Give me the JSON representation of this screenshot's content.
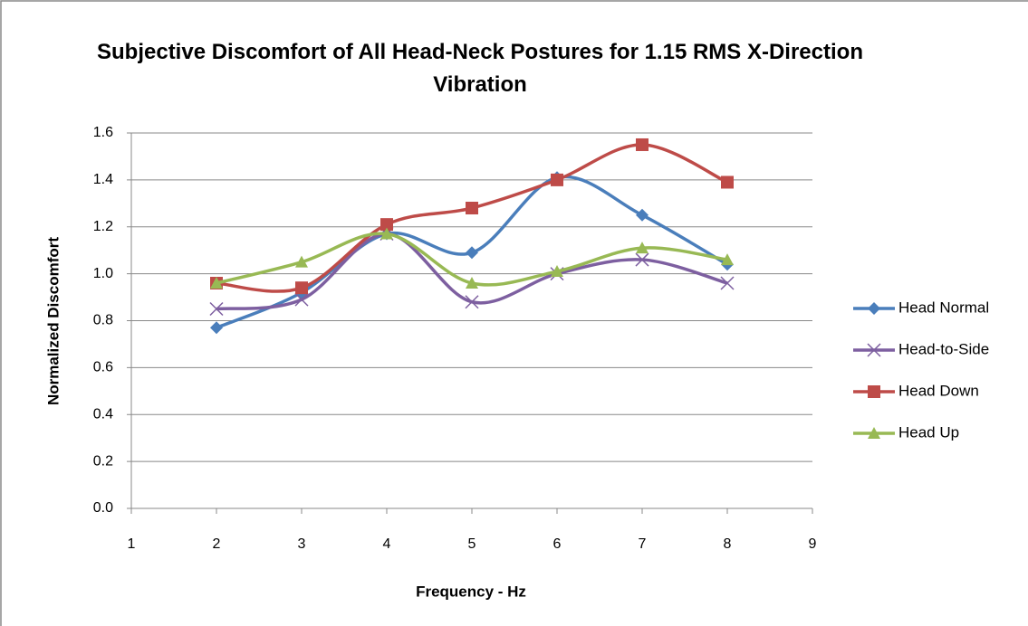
{
  "chart_data": {
    "type": "line",
    "title": "Subjective Discomfort of All Head-Neck Postures for 1.15 RMS X-Direction Vibration",
    "x_label": "Frequency - Hz",
    "y_label": "Normalized Discomfort",
    "x": [
      2,
      3,
      4,
      5,
      6,
      7,
      8
    ],
    "series": [
      {
        "name": "Head Normal",
        "color": "#4a7ebb",
        "marker": "diamond",
        "values": [
          0.77,
          0.92,
          1.17,
          1.09,
          1.41,
          1.25,
          1.04
        ]
      },
      {
        "name": "Head-to-Side",
        "color": "#7d5fa0",
        "marker": "cross",
        "values": [
          0.85,
          0.89,
          1.17,
          0.88,
          1.0,
          1.06,
          0.96
        ]
      },
      {
        "name": "Head Down",
        "color": "#be4b48",
        "marker": "square",
        "values": [
          0.96,
          0.94,
          1.21,
          1.28,
          1.4,
          1.55,
          1.39
        ]
      },
      {
        "name": "Head Up",
        "color": "#98b954",
        "marker": "triangle",
        "values": [
          0.96,
          1.05,
          1.17,
          0.96,
          1.01,
          1.11,
          1.06
        ]
      }
    ],
    "xlim": [
      1,
      9
    ],
    "xticks": [
      1,
      2,
      3,
      4,
      5,
      6,
      7,
      8,
      9
    ],
    "ylim": [
      0,
      1.6
    ],
    "yticks": [
      {
        "value": 0,
        "label": "0.0"
      },
      0.2,
      0.4,
      0.6,
      0.8,
      {
        "value": 1,
        "label": "1.0"
      },
      1.2,
      1.4,
      1.6
    ],
    "grid": true,
    "smooth": true,
    "legend": "right"
  }
}
